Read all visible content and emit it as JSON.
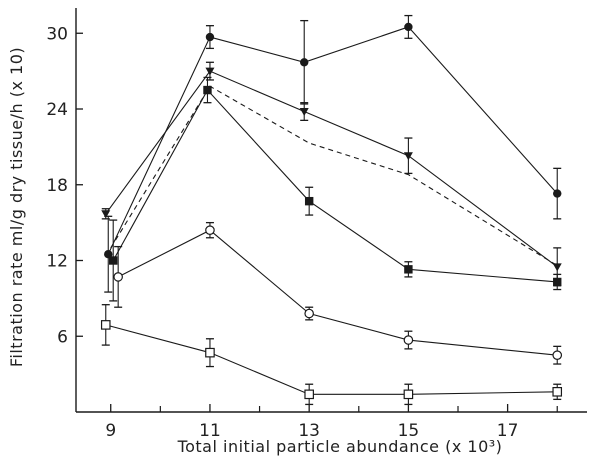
{
  "chart_data": {
    "type": "line",
    "xlabel": "Total initial particle abundance (x 10³)",
    "ylabel": "Filtration rate ml/g dry tissue/h (x 10)",
    "xlim": [
      8.3,
      18.6
    ],
    "ylim": [
      0,
      32
    ],
    "xticks": [
      9,
      11,
      13,
      15,
      17
    ],
    "xminor": [
      10,
      12,
      14,
      16,
      18
    ],
    "yticks": [
      6,
      12,
      18,
      24,
      30
    ],
    "grid": false,
    "legend": "none",
    "series": [
      {
        "marker": "filled-circle",
        "style": "solid",
        "points": [
          {
            "x": 8.95,
            "y": 12.5,
            "err": 3.0
          },
          {
            "x": 11.0,
            "y": 29.7,
            "err": 0.9
          },
          {
            "x": 12.9,
            "y": 27.7,
            "err": 3.3
          },
          {
            "x": 15.0,
            "y": 30.5,
            "err": 0.9
          },
          {
            "x": 18.0,
            "y": 17.3,
            "err": 2.0
          }
        ]
      },
      {
        "marker": "filled-triangle",
        "style": "solid",
        "points": [
          {
            "x": 8.9,
            "y": 15.7,
            "err": 0.4
          },
          {
            "x": 11.0,
            "y": 27.0,
            "err": 0.7
          },
          {
            "x": 12.9,
            "y": 23.8,
            "err": 0.7
          },
          {
            "x": 15.0,
            "y": 20.3,
            "err": 1.4
          },
          {
            "x": 18.0,
            "y": 11.5,
            "err": 1.5
          }
        ]
      },
      {
        "marker": "filled-square",
        "style": "solid",
        "points": [
          {
            "x": 9.05,
            "y": 12.0,
            "err": 3.2
          },
          {
            "x": 10.95,
            "y": 25.5,
            "err": 1.0
          },
          {
            "x": 13.0,
            "y": 16.7,
            "err": 1.1
          },
          {
            "x": 15.0,
            "y": 11.3,
            "err": 0.6
          },
          {
            "x": 18.0,
            "y": 10.3,
            "err": 0.6
          }
        ]
      },
      {
        "marker": "none",
        "style": "dashed",
        "points": [
          {
            "x": 9.0,
            "y": 13.0
          },
          {
            "x": 11.0,
            "y": 25.8
          },
          {
            "x": 13.0,
            "y": 21.3
          },
          {
            "x": 15.0,
            "y": 18.8
          },
          {
            "x": 18.0,
            "y": 11.6
          }
        ]
      },
      {
        "marker": "open-circle",
        "style": "solid",
        "points": [
          {
            "x": 9.15,
            "y": 10.7,
            "err": 2.4
          },
          {
            "x": 11.0,
            "y": 14.4,
            "err": 0.6
          },
          {
            "x": 13.0,
            "y": 7.8,
            "err": 0.5
          },
          {
            "x": 15.0,
            "y": 5.7,
            "err": 0.7
          },
          {
            "x": 18.0,
            "y": 4.5,
            "err": 0.7
          }
        ]
      },
      {
        "marker": "open-square",
        "style": "solid",
        "points": [
          {
            "x": 8.9,
            "y": 6.9,
            "err": 1.6
          },
          {
            "x": 11.0,
            "y": 4.7,
            "err": 1.1
          },
          {
            "x": 13.0,
            "y": 1.4,
            "err": 0.8
          },
          {
            "x": 15.0,
            "y": 1.4,
            "err": 0.8
          },
          {
            "x": 18.0,
            "y": 1.6,
            "err": 0.6
          }
        ]
      }
    ]
  }
}
